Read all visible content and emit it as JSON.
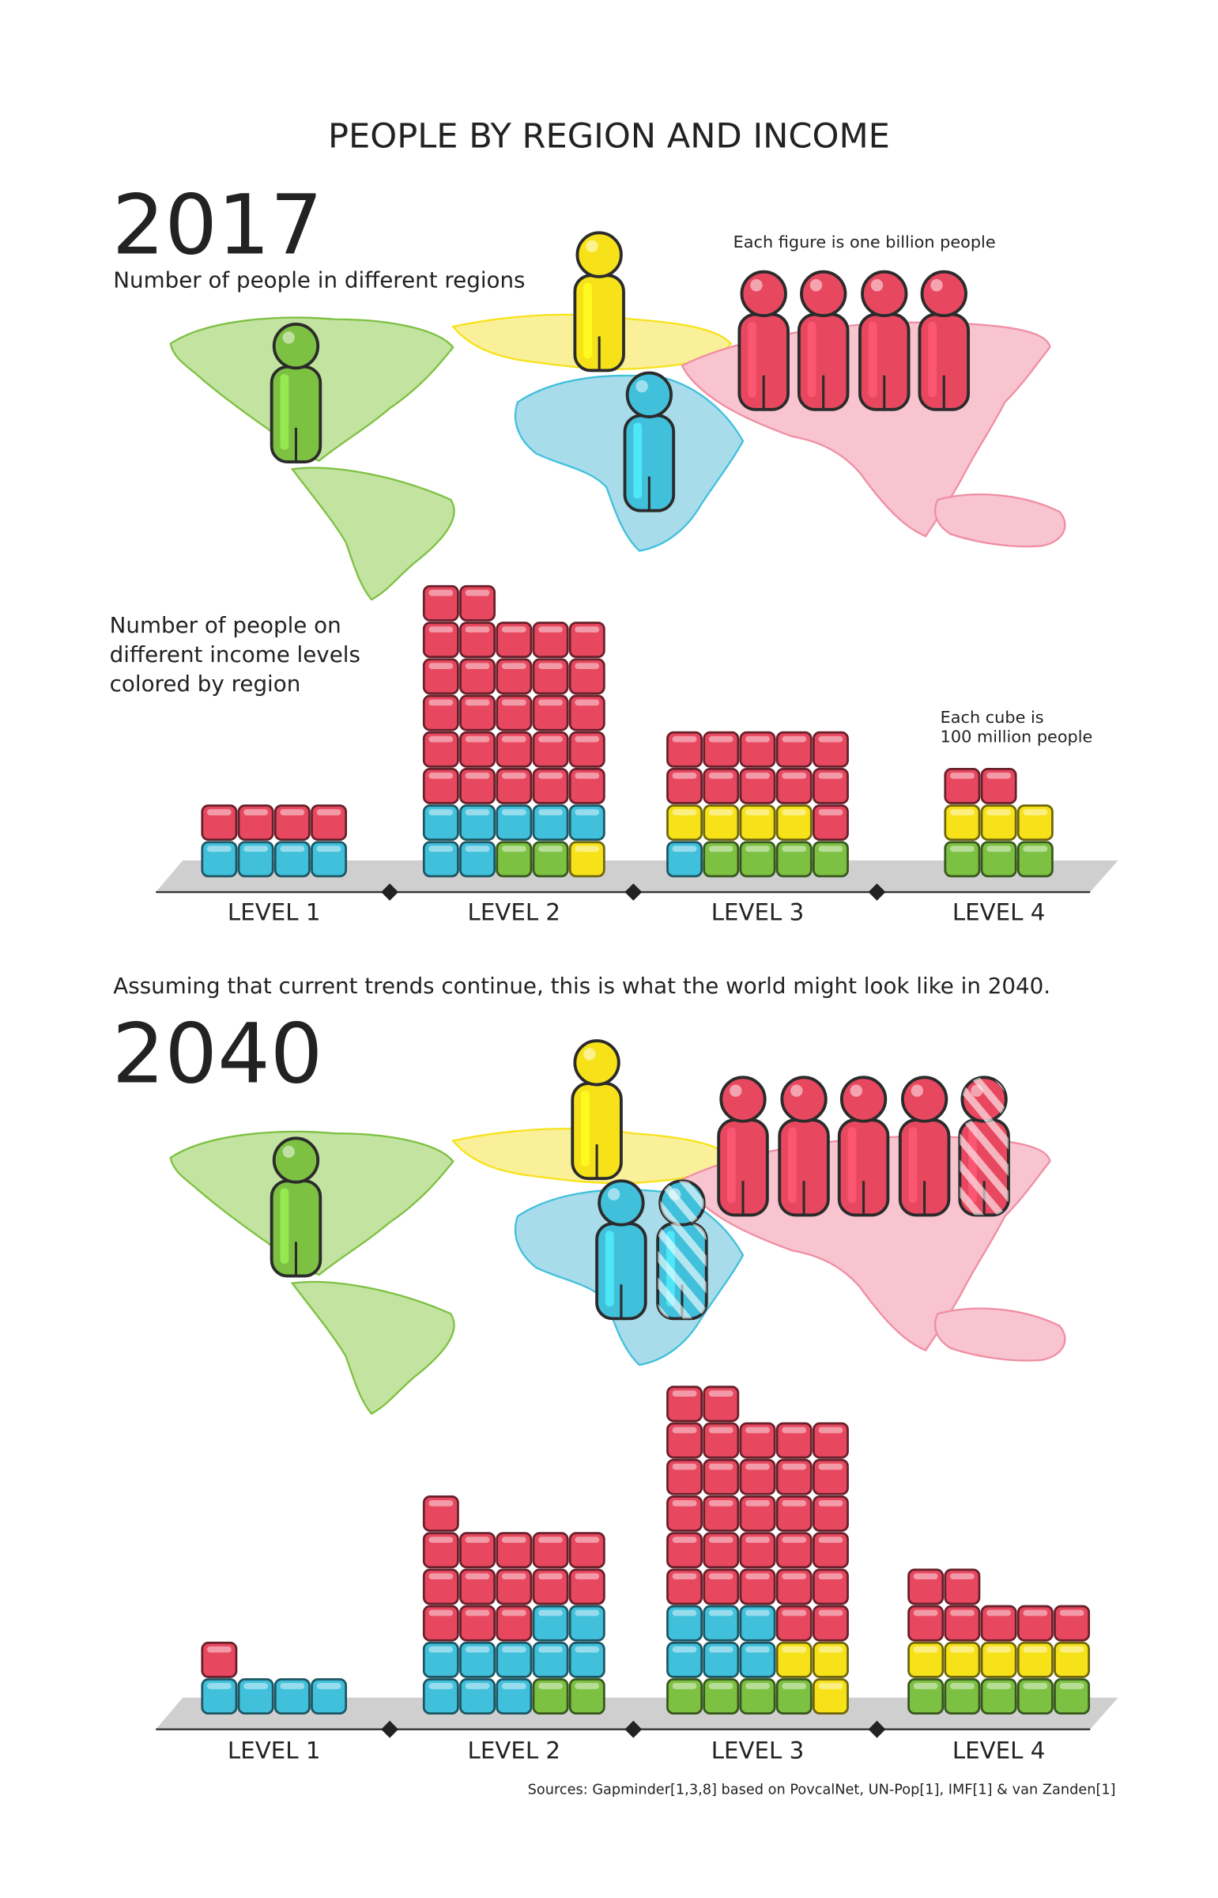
{
  "title": "PEOPLE BY REGION AND INCOME",
  "sections": [
    {
      "year": "2017",
      "subtitle": "Number of people in different regions",
      "figure_note": "Each figure is one billion people",
      "figures": [
        {
          "color": "#7dc142"
        },
        {
          "color": "#f7e21a"
        },
        {
          "color": "#41c0dc"
        },
        {
          "color": "#e8485f"
        },
        {
          "color": "#e8485f"
        },
        {
          "color": "#e8485f"
        },
        {
          "color": "#e8485f"
        }
      ],
      "bars_caption": [
        "Number of people on",
        "different income levels",
        "colored by region"
      ],
      "cube_note": [
        "Each cube is",
        "100 million people"
      ],
      "levels": [
        {
          "label": "LEVEL 1",
          "rows": [
            [
              "#41c0dc",
              "#41c0dc",
              "#41c0dc",
              "#41c0dc"
            ],
            [
              "#e8485f",
              "#e8485f",
              "#e8485f",
              "#e8485f"
            ]
          ]
        },
        {
          "label": "LEVEL 2",
          "rows": [
            [
              "#41c0dc",
              "#41c0dc",
              "#7dc142",
              "#7dc142",
              "#f7e21a"
            ],
            [
              "#41c0dc",
              "#41c0dc",
              "#41c0dc",
              "#41c0dc",
              "#41c0dc"
            ],
            [
              "#e8485f",
              "#e8485f",
              "#e8485f",
              "#e8485f",
              "#e8485f"
            ],
            [
              "#e8485f",
              "#e8485f",
              "#e8485f",
              "#e8485f",
              "#e8485f"
            ],
            [
              "#e8485f",
              "#e8485f",
              "#e8485f",
              "#e8485f",
              "#e8485f"
            ],
            [
              "#e8485f",
              "#e8485f",
              "#e8485f",
              "#e8485f",
              "#e8485f"
            ],
            [
              "#e8485f",
              "#e8485f",
              "#e8485f",
              "#e8485f",
              "#e8485f"
            ],
            [
              "#e8485f",
              "#e8485f"
            ]
          ]
        },
        {
          "label": "LEVEL 3",
          "rows": [
            [
              "#41c0dc",
              "#7dc142",
              "#7dc142",
              "#7dc142",
              "#7dc142"
            ],
            [
              "#f7e21a",
              "#f7e21a",
              "#f7e21a",
              "#f7e21a",
              "#e8485f"
            ],
            [
              "#e8485f",
              "#e8485f",
              "#e8485f",
              "#e8485f",
              "#e8485f"
            ],
            [
              "#e8485f",
              "#e8485f",
              "#e8485f",
              "#e8485f",
              "#e8485f"
            ]
          ]
        },
        {
          "label": "LEVEL 4",
          "rows": [
            [
              "#7dc142",
              "#7dc142",
              "#7dc142"
            ],
            [
              "#f7e21a",
              "#f7e21a",
              "#f7e21a"
            ],
            [
              "#e8485f",
              "#e8485f"
            ]
          ]
        }
      ]
    },
    {
      "year": "2040",
      "figures": [
        {
          "color": "#7dc142"
        },
        {
          "color": "#f7e21a"
        },
        {
          "color": "#41c0dc"
        },
        {
          "color": "#41c0dc",
          "striped": true
        },
        {
          "color": "#e8485f"
        },
        {
          "color": "#e8485f"
        },
        {
          "color": "#e8485f"
        },
        {
          "color": "#e8485f"
        },
        {
          "color": "#e8485f",
          "striped": true
        }
      ],
      "levels": [
        {
          "label": "LEVEL 1",
          "rows": [
            [
              "#41c0dc",
              "#41c0dc",
              "#41c0dc",
              "#41c0dc"
            ],
            [
              "#e8485f"
            ]
          ]
        },
        {
          "label": "LEVEL 2",
          "rows": [
            [
              "#41c0dc",
              "#41c0dc",
              "#41c0dc",
              "#7dc142",
              "#7dc142"
            ],
            [
              "#41c0dc",
              "#41c0dc",
              "#41c0dc",
              "#41c0dc",
              "#41c0dc"
            ],
            [
              "#e8485f",
              "#e8485f",
              "#e8485f",
              "#41c0dc",
              "#41c0dc"
            ],
            [
              "#e8485f",
              "#e8485f",
              "#e8485f",
              "#e8485f",
              "#e8485f"
            ],
            [
              "#e8485f",
              "#e8485f",
              "#e8485f",
              "#e8485f",
              "#e8485f"
            ],
            [
              "#e8485f"
            ]
          ]
        },
        {
          "label": "LEVEL 3",
          "rows": [
            [
              "#7dc142",
              "#7dc142",
              "#7dc142",
              "#7dc142",
              "#f7e21a"
            ],
            [
              "#41c0dc",
              "#41c0dc",
              "#41c0dc",
              "#f7e21a",
              "#f7e21a"
            ],
            [
              "#41c0dc",
              "#41c0dc",
              "#41c0dc",
              "#e8485f",
              "#e8485f"
            ],
            [
              "#e8485f",
              "#e8485f",
              "#e8485f",
              "#e8485f",
              "#e8485f"
            ],
            [
              "#e8485f",
              "#e8485f",
              "#e8485f",
              "#e8485f",
              "#e8485f"
            ],
            [
              "#e8485f",
              "#e8485f",
              "#e8485f",
              "#e8485f",
              "#e8485f"
            ],
            [
              "#e8485f",
              "#e8485f",
              "#e8485f",
              "#e8485f",
              "#e8485f"
            ],
            [
              "#e8485f",
              "#e8485f",
              "#e8485f",
              "#e8485f",
              "#e8485f"
            ],
            [
              "#e8485f",
              "#e8485f"
            ]
          ]
        },
        {
          "label": "LEVEL 4",
          "rows": [
            [
              "#7dc142",
              "#7dc142",
              "#7dc142",
              "#7dc142",
              "#7dc142"
            ],
            [
              "#f7e21a",
              "#f7e21a",
              "#f7e21a",
              "#f7e21a",
              "#f7e21a"
            ],
            [
              "#e8485f",
              "#e8485f",
              "#e8485f",
              "#e8485f",
              "#e8485f"
            ],
            [
              "#e8485f",
              "#e8485f"
            ]
          ]
        }
      ]
    }
  ],
  "transition": "Assuming that current trends continue, this is what the world might look like in 2040.",
  "sources": "Sources: Gapminder[1,3,8] based on PovcalNet, UN-Pop[1], IMF[1] & van Zanden[1]"
}
